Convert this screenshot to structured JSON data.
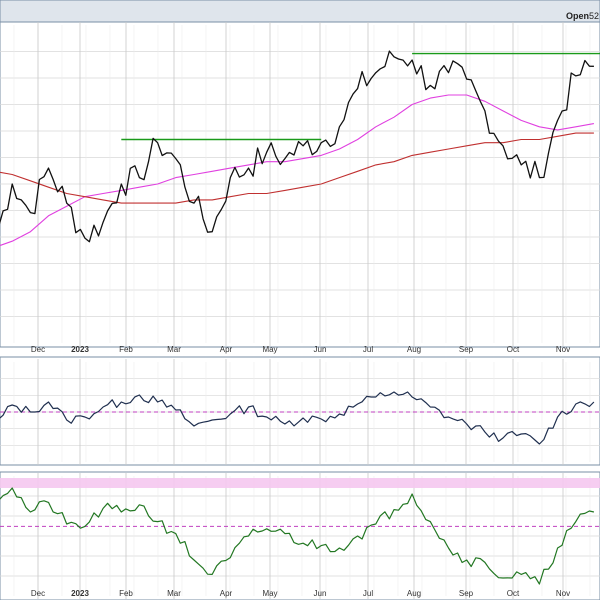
{
  "header": {
    "open_label": "Open",
    "open_value": "52"
  },
  "colors": {
    "price": "#111111",
    "sma50": "#e040e0",
    "sma200": "#c03030",
    "resistance": "#1a9a1a",
    "rsi": "#1f2f4f",
    "macd": "#227722",
    "zone": "#f5c8f0",
    "midline": "#c040c0",
    "grid": "#d8d8d8",
    "panel_bg": "#ffffff",
    "frame": "#7a8fa6"
  },
  "chart_data": [
    {
      "type": "line",
      "panel": "price",
      "x_ticks": [
        "Dec",
        "2023",
        "Feb",
        "Mar",
        "Apr",
        "May",
        "Jun",
        "Jul",
        "Aug",
        "Sep",
        "Oct",
        "Nov"
      ],
      "grid": true,
      "ylim": [
        0,
        100
      ],
      "series": [
        {
          "key": "price",
          "x": [
            0,
            3,
            6,
            9,
            12,
            15,
            18,
            21,
            24,
            27,
            30,
            33,
            36,
            39,
            42,
            45,
            48,
            51,
            54,
            57,
            60,
            63,
            66,
            69,
            72,
            75,
            78,
            81,
            84,
            87,
            90,
            93,
            96,
            99
          ],
          "values": [
            32,
            50,
            41,
            55,
            44,
            33,
            38,
            50,
            52,
            63,
            58,
            44,
            35,
            52,
            55,
            60,
            58,
            62,
            63,
            68,
            80,
            85,
            90,
            89,
            81,
            85,
            83,
            73,
            62,
            56,
            52,
            70,
            84,
            87
          ]
        },
        {
          "key": "sma50",
          "x": [
            0,
            3,
            6,
            9,
            12,
            15,
            18,
            21,
            24,
            27,
            30,
            33,
            36,
            39,
            42,
            45,
            48,
            51,
            54,
            57,
            60,
            63,
            66,
            69,
            72,
            75,
            78,
            81,
            84,
            87,
            90,
            93,
            96,
            99
          ],
          "values": [
            30,
            32,
            35,
            40,
            43,
            46,
            47,
            48,
            49,
            50,
            52,
            53,
            54,
            55,
            56,
            57,
            57,
            58,
            59,
            61,
            64,
            68,
            71,
            75,
            77,
            78,
            78,
            76,
            73,
            70,
            68,
            67,
            68,
            69
          ]
        },
        {
          "key": "sma200",
          "x": [
            0,
            3,
            6,
            9,
            12,
            15,
            18,
            21,
            24,
            27,
            30,
            33,
            36,
            39,
            42,
            45,
            48,
            51,
            54,
            57,
            60,
            63,
            66,
            69,
            72,
            75,
            78,
            81,
            84,
            87,
            90,
            93,
            96,
            99
          ],
          "values": [
            54,
            53,
            51,
            49,
            47,
            46,
            45,
            44,
            44,
            44,
            44,
            45,
            45,
            46,
            47,
            47,
            48,
            49,
            50,
            52,
            54,
            56,
            57,
            59,
            60,
            61,
            62,
            63,
            63,
            64,
            64,
            65,
            66,
            66
          ]
        },
        {
          "key": "resistance1",
          "x": [
            21,
            54
          ],
          "values": [
            64,
            64
          ]
        },
        {
          "key": "resistance2",
          "x": [
            69,
            100
          ],
          "values": [
            91,
            91
          ]
        }
      ]
    },
    {
      "type": "line",
      "panel": "rsi",
      "grid": true,
      "ylim": [
        0,
        100
      ],
      "series": [
        {
          "key": "rsi",
          "x": [
            0,
            3,
            6,
            9,
            12,
            15,
            18,
            21,
            24,
            27,
            30,
            33,
            36,
            39,
            42,
            45,
            48,
            51,
            54,
            57,
            60,
            63,
            66,
            69,
            72,
            75,
            78,
            81,
            84,
            87,
            90,
            93,
            96,
            99
          ],
          "values": [
            35,
            57,
            50,
            60,
            42,
            45,
            55,
            60,
            67,
            60,
            52,
            36,
            42,
            48,
            55,
            45,
            38,
            44,
            43,
            48,
            58,
            65,
            70,
            65,
            55,
            45,
            38,
            30,
            24,
            28,
            18,
            45,
            58,
            60
          ]
        }
      ]
    },
    {
      "type": "line",
      "panel": "macd",
      "grid": true,
      "ylim": [
        0,
        100
      ],
      "series": [
        {
          "key": "macd",
          "x": [
            0,
            3,
            6,
            9,
            12,
            15,
            18,
            21,
            24,
            27,
            30,
            33,
            36,
            39,
            42,
            45,
            48,
            51,
            54,
            57,
            60,
            63,
            66,
            69,
            72,
            75,
            78,
            81,
            84,
            87,
            90,
            93,
            96,
            99
          ],
          "values": [
            82,
            90,
            70,
            78,
            60,
            58,
            73,
            70,
            76,
            62,
            52,
            30,
            18,
            32,
            50,
            56,
            52,
            44,
            42,
            40,
            50,
            60,
            72,
            85,
            62,
            40,
            30,
            28,
            15,
            18,
            10,
            40,
            62,
            70
          ]
        }
      ]
    }
  ]
}
